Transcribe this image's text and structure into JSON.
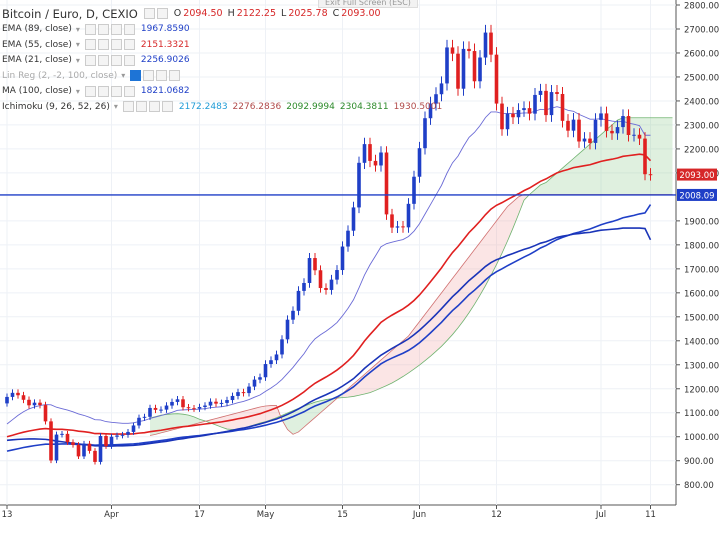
{
  "header": {
    "title": "Bitcoin / Euro, D, CEXIO",
    "ohlc": [
      {
        "label": "O",
        "value": "2094.50"
      },
      {
        "label": "H",
        "value": "2122.25"
      },
      {
        "label": "L",
        "value": "2025.78"
      },
      {
        "label": "C",
        "value": "2093.00"
      }
    ],
    "exit_fullscreen": "Exit Full Screen (ESC)"
  },
  "indicators": [
    {
      "name": "EMA (89, close)",
      "values": [
        "1967.8590"
      ],
      "value_colors": [
        "#1f3fc7"
      ],
      "muted": false
    },
    {
      "name": "EMA (55, close)",
      "values": [
        "2151.3321"
      ],
      "value_colors": [
        "#d62728"
      ],
      "muted": false
    },
    {
      "name": "EMA (21, close)",
      "values": [
        "2256.9026"
      ],
      "value_colors": [
        "#1f3fc7"
      ],
      "muted": false
    },
    {
      "name": "Lin Reg (2, -2, 100, close)",
      "values": [],
      "value_colors": [],
      "muted": true
    },
    {
      "name": "MA (100, close)",
      "values": [
        "1821.0682"
      ],
      "value_colors": [
        "#1f3fc7"
      ],
      "muted": false
    },
    {
      "name": "Ichimoku (9, 26, 52, 26)",
      "values": [
        "2172.2483",
        "2276.2836",
        "2092.9994",
        "2304.3811",
        "1930.5001"
      ],
      "value_colors": [
        "#1f9bd6",
        "#b04a4a",
        "#2c8a2c",
        "#2c8a2c",
        "#b04a4a"
      ],
      "muted": false
    }
  ],
  "chart_data": {
    "type": "line",
    "title": "Bitcoin / Euro, D, CEXIO",
    "xlabel": "",
    "ylabel": "",
    "ylim": [
      720,
      2820
    ],
    "grid": true,
    "y_ticks": [
      "2800.00",
      "2700.00",
      "2600.00",
      "2500.00",
      "2400.00",
      "2300.00",
      "2200.00",
      "2100.00",
      "1900.00",
      "1800.00",
      "1700.00",
      "1600.00",
      "1500.00",
      "1400.00",
      "1300.00",
      "1200.00",
      "1100.00",
      "1000.00",
      "900.00",
      "800.00"
    ],
    "y_tick_values": [
      2800,
      2700,
      2600,
      2500,
      2400,
      2300,
      2200,
      2100,
      1900,
      1800,
      1700,
      1600,
      1500,
      1400,
      1300,
      1200,
      1100,
      1000,
      900,
      800
    ],
    "x_ticks": [
      "13",
      "Apr",
      "17",
      "May",
      "15",
      "Jun",
      "12",
      "Jul",
      "11"
    ],
    "x_tick_index": [
      0,
      19,
      35,
      47,
      61,
      75,
      89,
      108,
      117
    ],
    "price_labels": [
      {
        "text": "2093.00",
        "value": 2093,
        "color": "#d62728"
      },
      {
        "text": "2008.09",
        "value": 2008.09,
        "color": "#1f3fc7"
      }
    ],
    "horizontal_line": 2008.09,
    "candles": [
      [
        1139,
        1166
      ],
      [
        1166,
        1183
      ],
      [
        1183,
        1173
      ],
      [
        1173,
        1154
      ],
      [
        1154,
        1131
      ],
      [
        1131,
        1142
      ],
      [
        1142,
        1132
      ],
      [
        1132,
        1064
      ],
      [
        1064,
        901
      ],
      [
        901,
        1009
      ],
      [
        1009,
        1012
      ],
      [
        1012,
        977
      ],
      [
        977,
        966
      ],
      [
        966,
        918
      ],
      [
        918,
        971
      ],
      [
        971,
        941
      ],
      [
        941,
        895
      ],
      [
        895,
        1003
      ],
      [
        1003,
        961
      ],
      [
        961,
        1000
      ],
      [
        1000,
        1005
      ],
      [
        1005,
        1008
      ],
      [
        1008,
        1020
      ],
      [
        1020,
        1047
      ],
      [
        1047,
        1079
      ],
      [
        1079,
        1083
      ],
      [
        1083,
        1120
      ],
      [
        1120,
        1112
      ],
      [
        1112,
        1113
      ],
      [
        1113,
        1130
      ],
      [
        1130,
        1145
      ],
      [
        1145,
        1156
      ],
      [
        1156,
        1123
      ],
      [
        1123,
        1119
      ],
      [
        1119,
        1117
      ],
      [
        1117,
        1124
      ],
      [
        1124,
        1130
      ],
      [
        1130,
        1146
      ],
      [
        1146,
        1138
      ],
      [
        1138,
        1141
      ],
      [
        1141,
        1153
      ],
      [
        1153,
        1170
      ],
      [
        1170,
        1186
      ],
      [
        1186,
        1182
      ],
      [
        1182,
        1209
      ],
      [
        1209,
        1238
      ],
      [
        1238,
        1248
      ],
      [
        1248,
        1303
      ],
      [
        1303,
        1319
      ],
      [
        1319,
        1343
      ],
      [
        1343,
        1406
      ],
      [
        1406,
        1488
      ],
      [
        1488,
        1525
      ],
      [
        1525,
        1608
      ],
      [
        1608,
        1641
      ],
      [
        1641,
        1745
      ],
      [
        1745,
        1694
      ],
      [
        1694,
        1620
      ],
      [
        1620,
        1612
      ],
      [
        1612,
        1655
      ],
      [
        1655,
        1695
      ],
      [
        1695,
        1793
      ],
      [
        1793,
        1859
      ],
      [
        1859,
        1956
      ],
      [
        1956,
        2142
      ],
      [
        2142,
        2220
      ],
      [
        2220,
        2150
      ],
      [
        2150,
        2131
      ],
      [
        2131,
        2185
      ],
      [
        2185,
        1927
      ],
      [
        1927,
        1872
      ],
      [
        1872,
        1877
      ],
      [
        1877,
        1873
      ],
      [
        1873,
        1971
      ],
      [
        1971,
        2084
      ],
      [
        2084,
        2203
      ],
      [
        2203,
        2328
      ],
      [
        2328,
        2389
      ],
      [
        2389,
        2428
      ],
      [
        2428,
        2473
      ],
      [
        2473,
        2623
      ],
      [
        2623,
        2597
      ],
      [
        2597,
        2451
      ],
      [
        2451,
        2617
      ],
      [
        2617,
        2608
      ],
      [
        2608,
        2482
      ],
      [
        2482,
        2581
      ],
      [
        2581,
        2685
      ],
      [
        2685,
        2593
      ],
      [
        2593,
        2389
      ],
      [
        2389,
        2282
      ],
      [
        2282,
        2347
      ],
      [
        2347,
        2332
      ],
      [
        2332,
        2362
      ],
      [
        2362,
        2370
      ],
      [
        2370,
        2347
      ],
      [
        2347,
        2425
      ],
      [
        2425,
        2442
      ],
      [
        2442,
        2341
      ],
      [
        2341,
        2437
      ],
      [
        2437,
        2429
      ],
      [
        2429,
        2317
      ],
      [
        2317,
        2276
      ],
      [
        2276,
        2322
      ],
      [
        2322,
        2231
      ],
      [
        2231,
        2243
      ],
      [
        2243,
        2225
      ],
      [
        2225,
        2321
      ],
      [
        2321,
        2348
      ],
      [
        2348,
        2275
      ],
      [
        2275,
        2265
      ],
      [
        2265,
        2291
      ],
      [
        2291,
        2337
      ],
      [
        2337,
        2258
      ],
      [
        2258,
        2259
      ],
      [
        2259,
        2243
      ],
      [
        2243,
        2094.5
      ],
      [
        2094.5,
        2093
      ]
    ],
    "series": [
      {
        "name": "EMA (21, close)",
        "color": "#6b6bd6",
        "values": [
          1053,
          1071,
          1089,
          1104,
          1116,
          1124,
          1130,
          1134,
          1133,
          1123,
          1117,
          1111,
          1104,
          1095,
          1089,
          1081,
          1071,
          1070,
          1063,
          1060,
          1058,
          1056,
          1056,
          1058,
          1063,
          1068,
          1076,
          1082,
          1088,
          1095,
          1102,
          1110,
          1112,
          1113,
          1114,
          1115,
          1117,
          1121,
          1123,
          1125,
          1129,
          1135,
          1142,
          1147,
          1155,
          1165,
          1174,
          1189,
          1203,
          1219,
          1239,
          1264,
          1289,
          1318,
          1346,
          1381,
          1408,
          1425,
          1440,
          1457,
          1476,
          1504,
          1535,
          1571,
          1621,
          1674,
          1717,
          1754,
          1792,
          1805,
          1811,
          1817,
          1822,
          1835,
          1857,
          1888,
          1928,
          1968,
          2008,
          2048,
          2099,
          2142,
          2170,
          2211,
          2248,
          2269,
          2297,
          2331,
          2354,
          2354,
          2348,
          2348,
          2347,
          2348,
          2350,
          2350,
          2357,
          2365,
          2363,
          2370,
          2376,
          2370,
          2361,
          2357,
          2344,
          2334,
          2324,
          2324,
          2326,
          2321,
          2316,
          2313,
          2315,
          2308,
          2303,
          2297,
          2257,
          2257
        ]
      },
      {
        "name": "EMA (55, close)",
        "color": "#e02020",
        "values": [
          1000,
          1006,
          1013,
          1019,
          1024,
          1028,
          1032,
          1034,
          1032,
          1031,
          1031,
          1029,
          1027,
          1023,
          1021,
          1018,
          1013,
          1013,
          1012,
          1011,
          1011,
          1011,
          1011,
          1012,
          1015,
          1017,
          1021,
          1024,
          1027,
          1031,
          1035,
          1039,
          1042,
          1044,
          1047,
          1050,
          1053,
          1056,
          1059,
          1062,
          1066,
          1070,
          1075,
          1079,
          1084,
          1090,
          1096,
          1104,
          1112,
          1121,
          1131,
          1143,
          1156,
          1171,
          1187,
          1206,
          1223,
          1236,
          1249,
          1263,
          1278,
          1296,
          1316,
          1339,
          1368,
          1399,
          1426,
          1451,
          1477,
          1493,
          1507,
          1520,
          1533,
          1549,
          1568,
          1591,
          1618,
          1646,
          1675,
          1704,
          1737,
          1768,
          1793,
          1822,
          1851,
          1874,
          1899,
          1926,
          1949,
          1965,
          1976,
          1989,
          2001,
          2013,
          2026,
          2037,
          2051,
          2065,
          2075,
          2088,
          2100,
          2108,
          2114,
          2122,
          2126,
          2130,
          2134,
          2141,
          2148,
          2153,
          2157,
          2162,
          2169,
          2172,
          2175,
          2178,
          2175,
          2151
        ]
      },
      {
        "name": "EMA (89, close)",
        "color": "#1f3fc7",
        "values": [
          940,
          945,
          950,
          955,
          959,
          963,
          966,
          969,
          969,
          969,
          970,
          970,
          969,
          968,
          968,
          967,
          965,
          966,
          966,
          966,
          967,
          968,
          969,
          970,
          972,
          975,
          978,
          981,
          984,
          987,
          991,
          995,
          998,
          1000,
          1003,
          1005,
          1008,
          1011,
          1014,
          1017,
          1020,
          1023,
          1027,
          1030,
          1034,
          1038,
          1043,
          1048,
          1054,
          1060,
          1067,
          1075,
          1084,
          1094,
          1104,
          1117,
          1128,
          1137,
          1146,
          1156,
          1166,
          1179,
          1193,
          1208,
          1228,
          1249,
          1268,
          1286,
          1304,
          1317,
          1328,
          1338,
          1348,
          1360,
          1375,
          1392,
          1412,
          1433,
          1455,
          1477,
          1502,
          1526,
          1546,
          1569,
          1592,
          1611,
          1632,
          1654,
          1673,
          1688,
          1700,
          1713,
          1725,
          1737,
          1749,
          1760,
          1773,
          1787,
          1797,
          1810,
          1822,
          1831,
          1839,
          1847,
          1853,
          1860,
          1866,
          1875,
          1884,
          1891,
          1897,
          1904,
          1913,
          1918,
          1923,
          1929,
          1933,
          1968
        ]
      },
      {
        "name": "MA (100, close)",
        "color": "#1a34b8",
        "values": [
          985,
          987,
          989,
          990,
          991,
          991,
          990,
          989,
          986,
          982,
          979,
          976,
          973,
          970,
          967,
          965,
          962,
          962,
          961,
          961,
          962,
          962,
          963,
          964,
          966,
          969,
          972,
          975,
          978,
          981,
          985,
          989,
          992,
          996,
          999,
          1002,
          1006,
          1010,
          1014,
          1018,
          1022,
          1027,
          1032,
          1036,
          1041,
          1047,
          1053,
          1060,
          1067,
          1074,
          1083,
          1093,
          1104,
          1116,
          1129,
          1143,
          1155,
          1165,
          1175,
          1186,
          1197,
          1211,
          1226,
          1242,
          1263,
          1285,
          1304,
          1322,
          1340,
          1354,
          1368,
          1381,
          1394,
          1408,
          1425,
          1444,
          1465,
          1487,
          1510,
          1534,
          1559,
          1584,
          1605,
          1628,
          1651,
          1670,
          1690,
          1710,
          1726,
          1738,
          1746,
          1756,
          1764,
          1773,
          1781,
          1788,
          1797,
          1807,
          1813,
          1822,
          1831,
          1836,
          1840,
          1845,
          1847,
          1850,
          1852,
          1857,
          1861,
          1863,
          1865,
          1867,
          1870,
          1870,
          1870,
          1870,
          1868,
          1821
        ]
      }
    ],
    "ichimoku": {
      "span_a": [
        1078,
        1084,
        1090,
        1093,
        1095,
        1096,
        1094,
        1090,
        1083,
        1073,
        1066,
        1057,
        1049,
        1040,
        1032,
        1030,
        1031,
        1036,
        1043,
        1050,
        1057,
        1063,
        1071,
        1079,
        1089,
        1099,
        1109,
        1118,
        1127,
        1136,
        1144,
        1150,
        1155,
        1158,
        1161,
        1163,
        1165,
        1168,
        1173,
        1178,
        1184,
        1193,
        1203,
        1213,
        1224,
        1237,
        1251,
        1266,
        1282,
        1299,
        1317,
        1336,
        1356,
        1377,
        1401,
        1426,
        1454,
        1484,
        1517,
        1552,
        1590,
        1630,
        1673,
        1718,
        1765,
        1816,
        1870,
        1927,
        1986,
        2010,
        2030,
        2050,
        2060,
        2080,
        2100,
        2120,
        2140,
        2160,
        2180,
        2200,
        2220,
        2240,
        2260,
        2280,
        2300,
        2320,
        2330,
        2330,
        2330,
        2330,
        2330,
        2330,
        2330,
        2330,
        2330,
        2330
      ],
      "span_b": [
        1005,
        1010,
        1016,
        1022,
        1028,
        1034,
        1040,
        1046,
        1052,
        1058,
        1064,
        1070,
        1076,
        1082,
        1088,
        1094,
        1100,
        1106,
        1112,
        1118,
        1124,
        1128,
        1130,
        1130,
        1070,
        1030,
        1010,
        1020,
        1040,
        1060,
        1080,
        1100,
        1120,
        1140,
        1160,
        1180,
        1200,
        1220,
        1240,
        1260,
        1280,
        1300,
        1320,
        1340,
        1360,
        1380,
        1400,
        1420,
        1450,
        1480,
        1510,
        1540,
        1570,
        1600,
        1630,
        1660,
        1690,
        1720,
        1750,
        1780,
        1810,
        1840,
        1870,
        1900,
        1930,
        1960,
        1980,
        2000,
        2010,
        2010,
        2010,
        2010,
        2010,
        2010,
        2010,
        2010,
        2010,
        2010,
        2010,
        2010,
        2010,
        2010,
        2010,
        2010,
        2010,
        2010,
        2010,
        2010,
        2010,
        2010,
        2010,
        2010,
        2010,
        2010,
        2010,
        2010
      ]
    }
  }
}
